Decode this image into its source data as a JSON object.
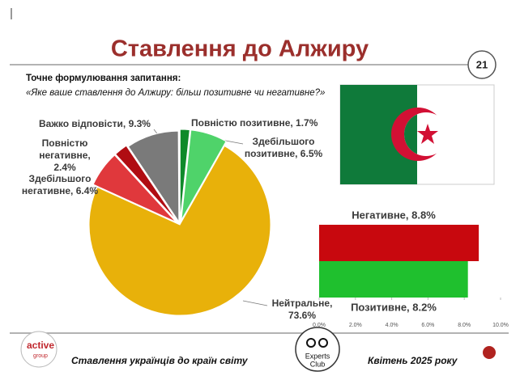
{
  "header": {
    "title": "Ставлення до Алжиру",
    "page_number": "21"
  },
  "question": {
    "label": "Точне формулювання запитання:",
    "text": "«Яке ваше ставлення до Алжиру: більш позитивне чи негативне?»"
  },
  "chart_data": [
    {
      "type": "pie",
      "categories": [
        "Повністю позитивне, 1.7%",
        "Здебільшого позитивне, 6.5%",
        "Нейтральне, 73.6%",
        "Здебільшого негативне, 6.4%",
        "Повністю негативне, 2.4%",
        "Важко відповісти, 9.3%"
      ],
      "values": [
        1.7,
        6.5,
        73.6,
        6.4,
        2.4,
        9.3
      ],
      "colors": [
        "#0f8a2a",
        "#4fd36a",
        "#e8b10a",
        "#e0383c",
        "#b00d12",
        "#7a7a7a"
      ]
    },
    {
      "type": "bar",
      "orientation": "horizontal",
      "categories": [
        "Негативне, 8.8%",
        "Позитивне, 8.2%"
      ],
      "values": [
        8.8,
        8.2
      ],
      "colors": [
        "#c8080e",
        "#1fc02e"
      ],
      "xlim": [
        0,
        10
      ],
      "xticks": [
        {
          "value": 0,
          "label": "0.0%"
        },
        {
          "value": 2,
          "label": "2.0%"
        },
        {
          "value": 4,
          "label": "4.0%"
        },
        {
          "value": 6,
          "label": "6.0%"
        },
        {
          "value": 8,
          "label": "8.0%"
        },
        {
          "value": 10,
          "label": "10.0%"
        }
      ]
    }
  ],
  "footer": {
    "left_logo": [
      "active",
      "group"
    ],
    "caption": "Ставлення українців до країн світу",
    "center_logo": [
      "Experts",
      "Club"
    ],
    "date": "Квітень 2025 року"
  }
}
